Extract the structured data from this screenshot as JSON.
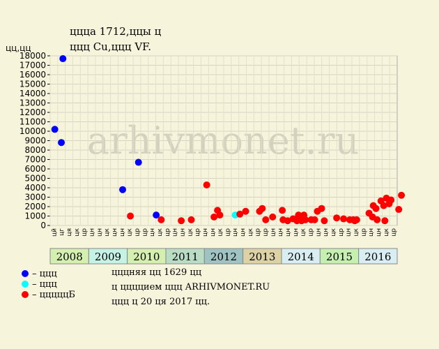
{
  "chart_data": {
    "type": "scatter",
    "title": "ццца 1712,ццы ц",
    "subtitle": "ццц Cu,ццц VF.",
    "ylabel": "цц,цц",
    "watermark": "arhivmonet.ru",
    "ylim": [
      0,
      18000
    ],
    "yticks": [
      0,
      1000,
      2000,
      3000,
      4000,
      5000,
      6000,
      7000,
      8000,
      9000,
      10000,
      11000,
      12000,
      13000,
      14000,
      15000,
      16000,
      17000,
      18000
    ],
    "x_range": [
      2008.0,
      2017.0
    ],
    "years": [
      {
        "label": "2008",
        "color": "#d5efb0"
      },
      {
        "label": "2009",
        "color": "#c6f2e6"
      },
      {
        "label": "2010",
        "color": "#d5efb0"
      },
      {
        "label": "2011",
        "color": "#b9dcc4"
      },
      {
        "label": "2012",
        "color": "#9fc3c3"
      },
      {
        "label": "2013",
        "color": "#dcd2a6"
      },
      {
        "label": "2014",
        "color": "#d9eef2"
      },
      {
        "label": "2015",
        "color": "#c5f0b0"
      },
      {
        "label": "2016",
        "color": "#d9eef2"
      }
    ],
    "month_labels": [
      "цй",
      "цг",
      "ця",
      "цк",
      "цр",
      "цн",
      "цн",
      "цк",
      "цн",
      "цн",
      "цк",
      "цр",
      "цр",
      "цн",
      "цк",
      "цр",
      "цн",
      "цн",
      "цк",
      "цр",
      "цн",
      "цн",
      "цк",
      "цр",
      "цн",
      "цн",
      "цк",
      "цр",
      "цр",
      "цн",
      "цн",
      "цн",
      "цн",
      "цк",
      "цр",
      "цн",
      "цн",
      "цк",
      "цр",
      "цн",
      "цк",
      "цр",
      "цн",
      "цн",
      "цк",
      "цр"
    ],
    "series": [
      {
        "name": "ццц",
        "color": "#0000ff",
        "points": [
          {
            "x": 2008.12,
            "y": 10200
          },
          {
            "x": 2008.29,
            "y": 8800
          },
          {
            "x": 2008.33,
            "y": 17700
          },
          {
            "x": 2009.88,
            "y": 3800
          },
          {
            "x": 2010.29,
            "y": 6700
          },
          {
            "x": 2010.75,
            "y": 1100
          }
        ]
      },
      {
        "name": "ццц",
        "color": "#00ffff",
        "points": [
          {
            "x": 2012.8,
            "y": 1100
          }
        ]
      },
      {
        "name": "цццццБ",
        "color": "#ff0000",
        "points": [
          {
            "x": 2010.08,
            "y": 1000
          },
          {
            "x": 2010.88,
            "y": 600
          },
          {
            "x": 2011.4,
            "y": 500
          },
          {
            "x": 2011.66,
            "y": 600
          },
          {
            "x": 2012.06,
            "y": 4300
          },
          {
            "x": 2012.25,
            "y": 900
          },
          {
            "x": 2012.34,
            "y": 1600
          },
          {
            "x": 2012.4,
            "y": 1100
          },
          {
            "x": 2012.92,
            "y": 1200
          },
          {
            "x": 2013.07,
            "y": 1500
          },
          {
            "x": 2013.43,
            "y": 1500
          },
          {
            "x": 2013.5,
            "y": 1800
          },
          {
            "x": 2013.59,
            "y": 600
          },
          {
            "x": 2013.77,
            "y": 900
          },
          {
            "x": 2014.02,
            "y": 1600
          },
          {
            "x": 2014.04,
            "y": 600
          },
          {
            "x": 2014.16,
            "y": 500
          },
          {
            "x": 2014.3,
            "y": 700
          },
          {
            "x": 2014.4,
            "y": 500
          },
          {
            "x": 2014.44,
            "y": 1100
          },
          {
            "x": 2014.47,
            "y": 800
          },
          {
            "x": 2014.52,
            "y": 500
          },
          {
            "x": 2014.58,
            "y": 1100
          },
          {
            "x": 2014.62,
            "y": 600
          },
          {
            "x": 2014.77,
            "y": 600
          },
          {
            "x": 2014.86,
            "y": 600
          },
          {
            "x": 2014.93,
            "y": 1500
          },
          {
            "x": 2015.04,
            "y": 1800
          },
          {
            "x": 2015.11,
            "y": 500
          },
          {
            "x": 2015.43,
            "y": 800
          },
          {
            "x": 2015.61,
            "y": 700
          },
          {
            "x": 2015.77,
            "y": 600
          },
          {
            "x": 2015.86,
            "y": 600
          },
          {
            "x": 2015.9,
            "y": 500
          },
          {
            "x": 2015.95,
            "y": 600
          },
          {
            "x": 2016.27,
            "y": 1300
          },
          {
            "x": 2016.36,
            "y": 900
          },
          {
            "x": 2016.38,
            "y": 2100
          },
          {
            "x": 2016.45,
            "y": 1800
          },
          {
            "x": 2016.48,
            "y": 600
          },
          {
            "x": 2016.58,
            "y": 2600
          },
          {
            "x": 2016.65,
            "y": 2100
          },
          {
            "x": 2016.68,
            "y": 500
          },
          {
            "x": 2016.72,
            "y": 2900
          },
          {
            "x": 2016.79,
            "y": 2300
          },
          {
            "x": 2016.84,
            "y": 2700
          },
          {
            "x": 2017.04,
            "y": 1700
          },
          {
            "x": 2017.11,
            "y": 3200
          }
        ]
      }
    ],
    "info_lines": [
      "цццняя цц 1629 цц",
      "ц ццццием ццц ARHIVMONET.RU",
      "ццц ц 20 ця 2017 цц."
    ]
  }
}
